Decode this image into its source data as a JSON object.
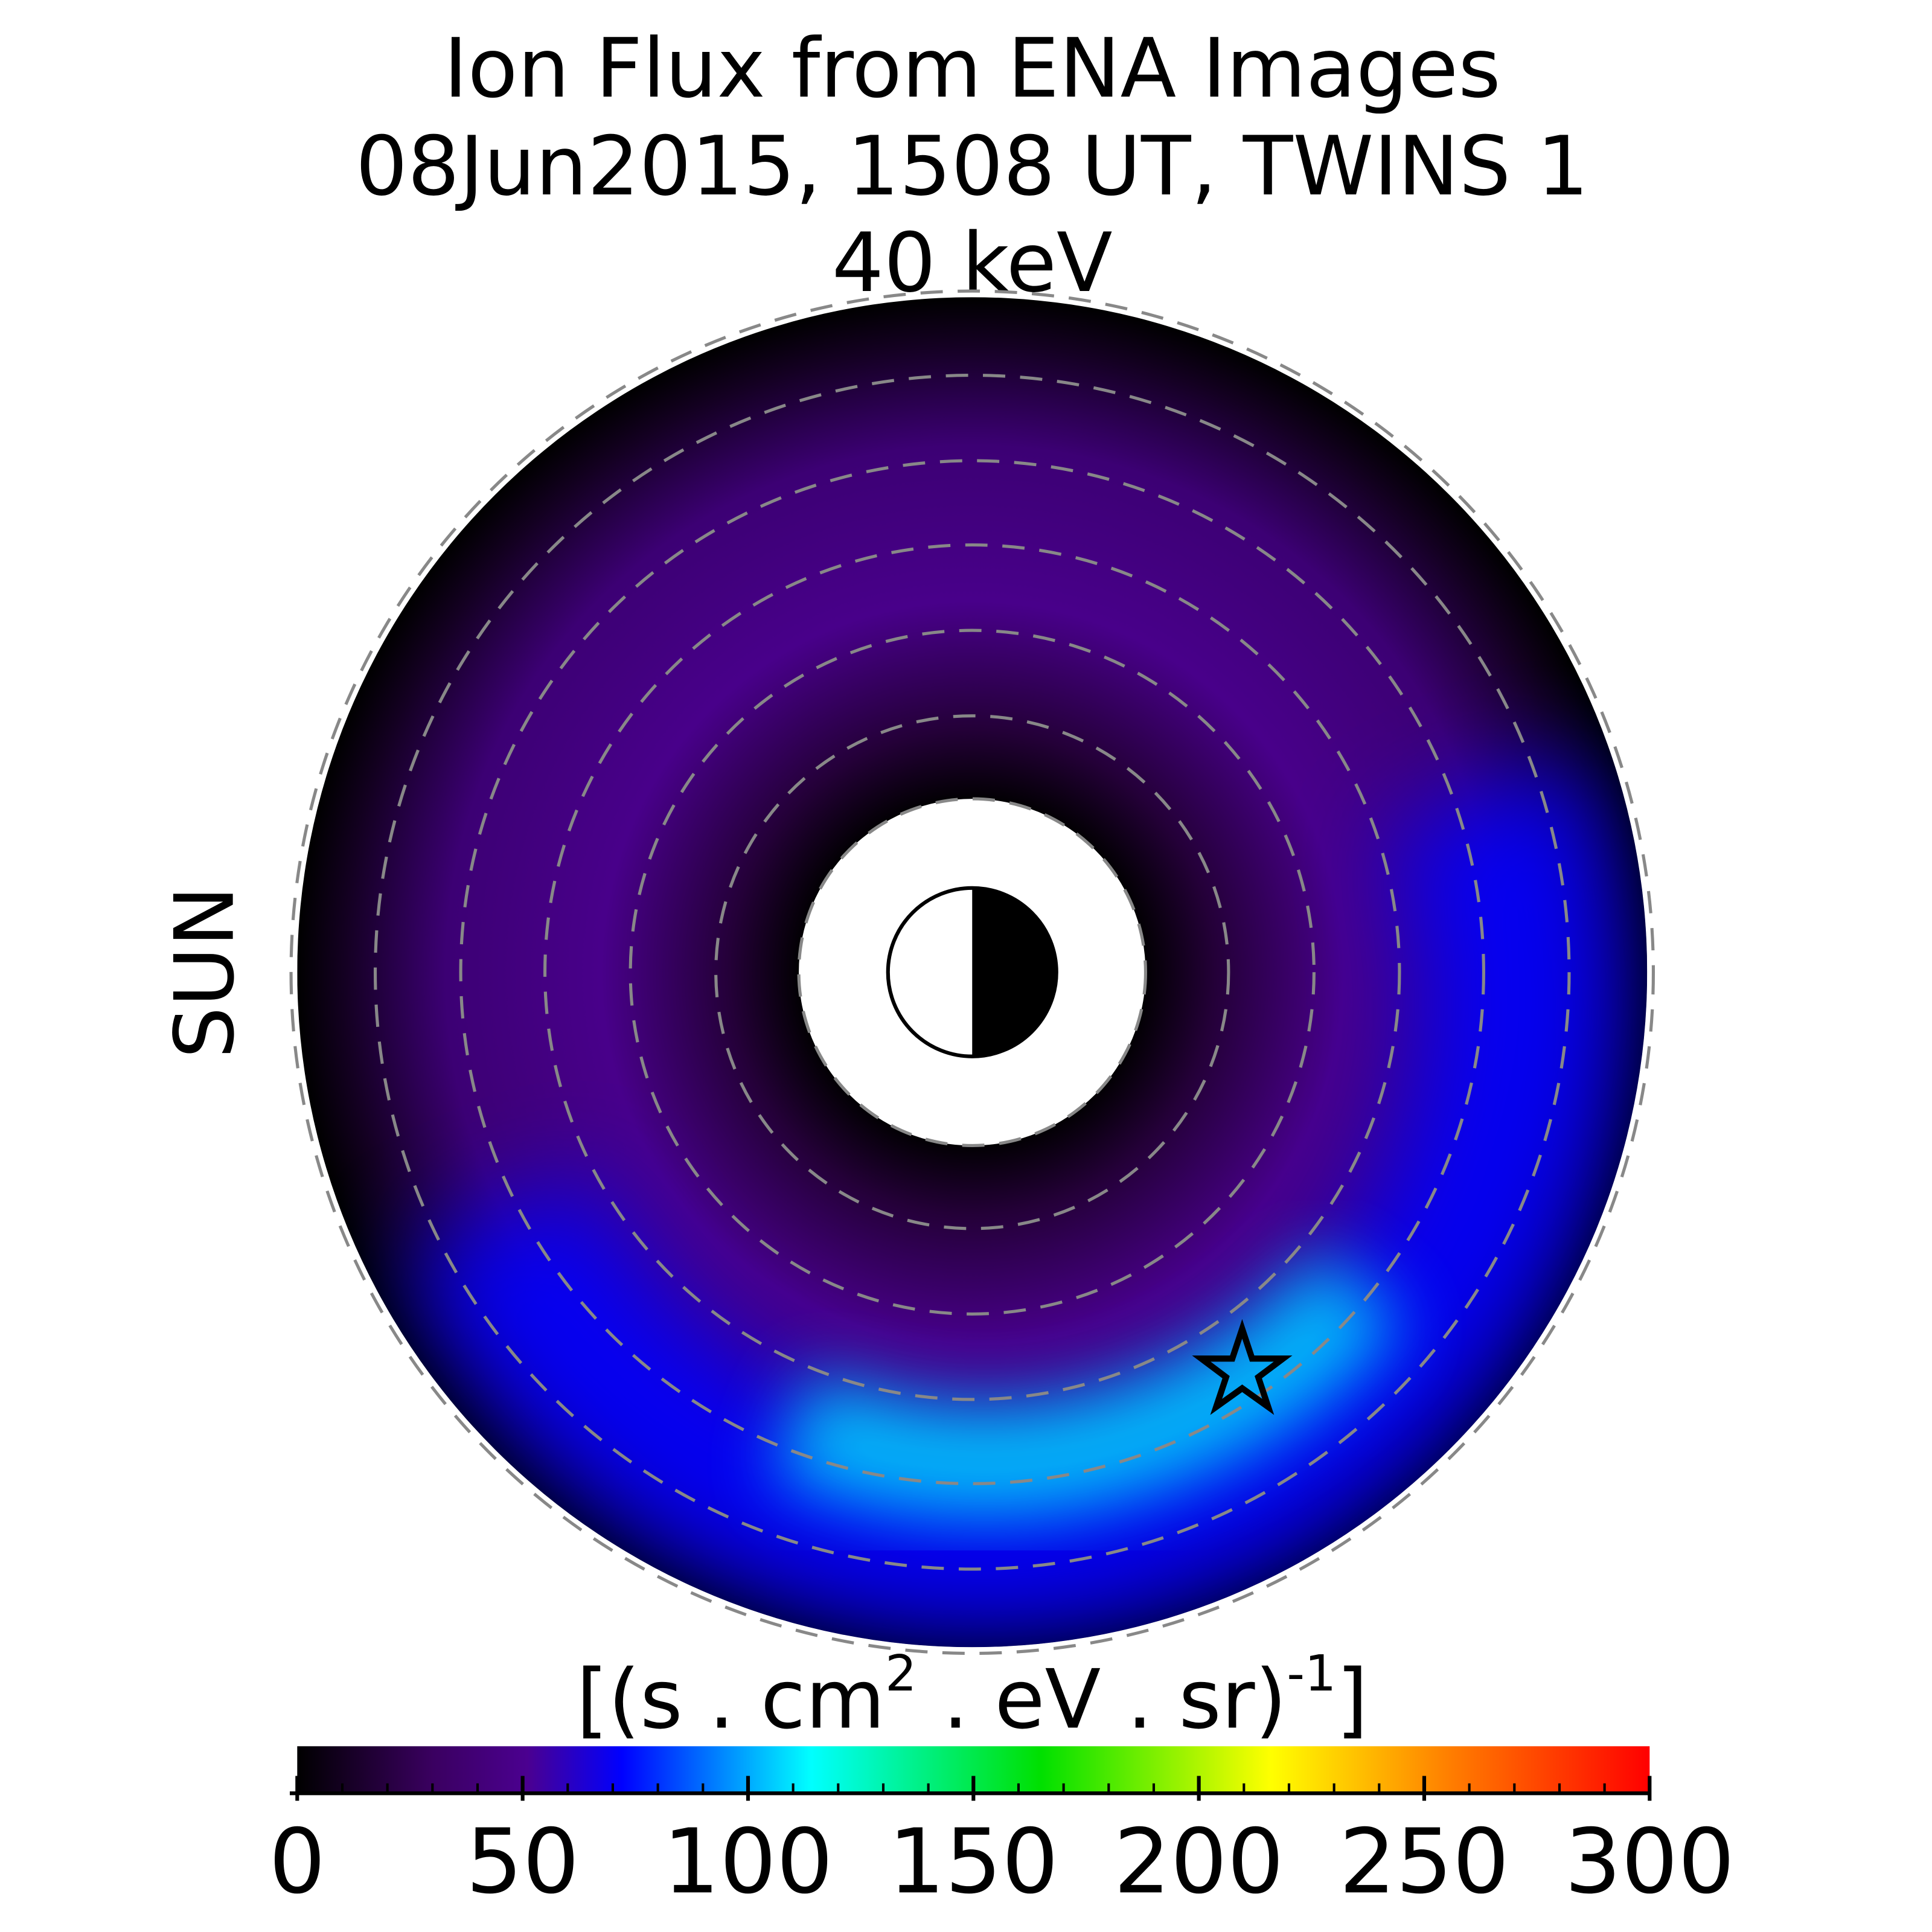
{
  "chart_data": {
    "type": "polar-heatmap",
    "title": [
      "Ion Flux from  ENA Images",
      "08Jun2015, 1508 UT,  TWINS 1",
      "40 keV"
    ],
    "annotation": "SUN",
    "annotation_color": "#f5a000",
    "colorbar": {
      "label": [
        "[(s . cm",
        "2",
        " . eV . sr)",
        "-1",
        "]"
      ],
      "lim": [
        0,
        300
      ],
      "ticks": [
        0,
        50,
        100,
        150,
        200,
        250,
        300
      ]
    }
  }
}
